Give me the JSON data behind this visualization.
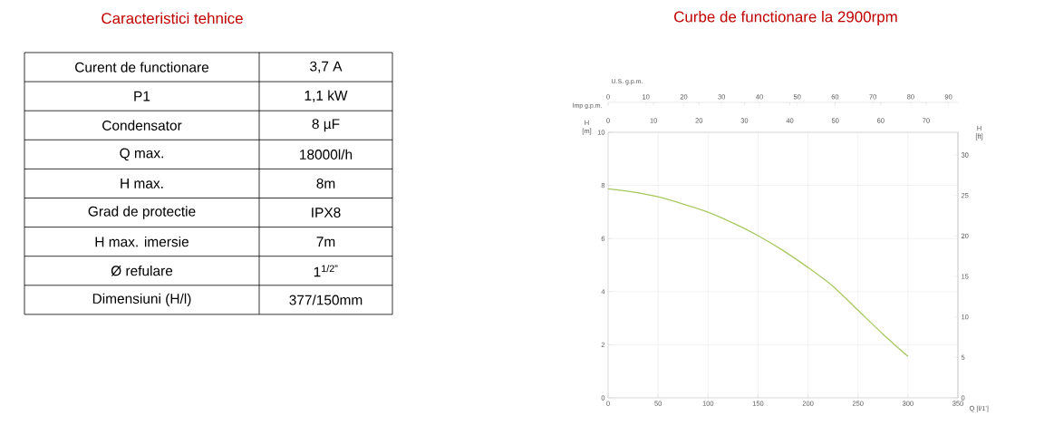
{
  "chart_data": [
    {
      "type": "other",
      "title": "Caracteristici tehnice",
      "annotations": [
        "Curent de functionare",
        "3,7 A",
        "P1",
        "1,1 kW",
        "Condensator",
        "8 µF",
        "Q max.",
        "18000l/h",
        "H max.",
        "8m",
        "Grad de protectie",
        "IPX8",
        "H max. imersie",
        "7m",
        "Ø refulare",
        "1$^{1/2”}$",
        "Dimensiuni (H/l)",
        "377/150mm"
      ]
    },
    {
      "type": "line",
      "title": "Curbe de functionare la 2900rpm",
      "xlabel": "Q [l/1']",
      "ylabel": "H [m]",
      "y2label": "H [ft]",
      "x2label": "U.S. g.p.m.",
      "annotations": [
        "Imp g.p.m.",
        "0",
        "10",
        "20",
        "30",
        "40",
        "50",
        "60",
        "70"
      ],
      "x": [
        0,
        25,
        50,
        75,
        100,
        125,
        150,
        175,
        200,
        225,
        250,
        275,
        300
      ],
      "values": [
        7.87,
        7.75,
        7.57,
        7.3,
        6.99,
        6.58,
        6.11,
        5.55,
        4.91,
        4.2,
        3.3,
        2.4,
        1.56
      ],
      "color": "#a8c860",
      "marker": "none",
      "line_style": "solid",
      "grid": true,
      "xlim": [
        0,
        350
      ],
      "xticks": [
        0,
        50,
        100,
        150,
        200,
        250,
        300,
        350
      ],
      "ylim": [
        0,
        10
      ],
      "yticks": [
        0,
        2,
        4,
        6,
        8,
        10
      ],
      "y2lim": [
        0,
        32.8
      ],
      "y2ticks": [
        0,
        5,
        10,
        15,
        20,
        25,
        30
      ],
      "x2lim": [
        0,
        92.5
      ],
      "x2ticks": [
        0,
        10,
        20,
        30,
        40,
        50,
        60,
        70,
        80,
        90
      ]
    }
  ]
}
